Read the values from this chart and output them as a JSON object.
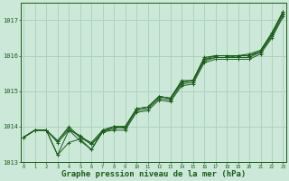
{
  "bg_color": "#cce8d8",
  "grid_color": "#aacfbb",
  "line_color": "#1a5c1a",
  "marker_color": "#1a5c1a",
  "xlabel": "Graphe pression niveau de la mer (hPa)",
  "xlabel_fontsize": 6.5,
  "xlabel_color": "#1a5c1a",
  "tick_color": "#1a5c1a",
  "ylim": [
    1013.0,
    1017.5
  ],
  "yticks": [
    1013,
    1014,
    1015,
    1016,
    1017
  ],
  "xticks": [
    0,
    1,
    2,
    3,
    4,
    5,
    6,
    7,
    8,
    9,
    10,
    11,
    12,
    13,
    14,
    15,
    16,
    17,
    18,
    19,
    20,
    21,
    22,
    23
  ],
  "figsize": [
    3.2,
    2.0
  ],
  "dpi": 100,
  "series": [
    [
      1013.7,
      1013.9,
      1013.9,
      1013.55,
      1013.9,
      1013.75,
      1013.5,
      1013.85,
      1014.0,
      1014.0,
      1014.5,
      1014.55,
      1014.85,
      1014.8,
      1015.25,
      1015.3,
      1015.9,
      1015.95,
      1015.95,
      1016.0,
      1016.0,
      1016.1,
      1016.6,
      1017.25
    ],
    [
      1013.7,
      1013.9,
      1013.9,
      1013.6,
      1014.0,
      1013.7,
      1013.55,
      1013.9,
      1014.0,
      1014.0,
      1014.5,
      1014.55,
      1014.85,
      1014.8,
      1015.3,
      1015.3,
      1015.95,
      1016.0,
      1016.0,
      1016.0,
      1016.05,
      1016.15,
      1016.65,
      1017.25
    ],
    [
      1013.7,
      1013.9,
      1013.9,
      1013.6,
      1013.95,
      1013.7,
      1013.5,
      1013.85,
      1013.95,
      1014.0,
      1014.5,
      1014.55,
      1014.85,
      1014.8,
      1015.25,
      1015.3,
      1015.9,
      1016.0,
      1016.0,
      1016.0,
      1016.0,
      1016.15,
      1016.6,
      1017.2
    ],
    [
      1013.7,
      1013.9,
      1013.9,
      1013.2,
      1013.9,
      1013.6,
      1013.35,
      1013.9,
      1014.0,
      1013.95,
      1014.45,
      1014.5,
      1014.8,
      1014.75,
      1015.2,
      1015.25,
      1015.85,
      1015.95,
      1015.95,
      1015.95,
      1015.95,
      1016.1,
      1016.55,
      1017.15
    ],
    [
      1013.7,
      1013.9,
      1013.9,
      1013.2,
      1013.55,
      1013.65,
      1013.35,
      1013.85,
      1013.9,
      1013.9,
      1014.4,
      1014.45,
      1014.75,
      1014.7,
      1015.15,
      1015.2,
      1015.8,
      1015.9,
      1015.9,
      1015.9,
      1015.9,
      1016.05,
      1016.5,
      1017.1
    ]
  ]
}
